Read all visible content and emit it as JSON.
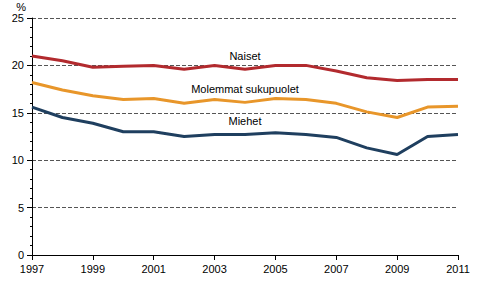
{
  "chart_data": {
    "type": "line",
    "ylabel": "%",
    "x": [
      1997,
      1998,
      1999,
      2000,
      2001,
      2002,
      2003,
      2004,
      2005,
      2006,
      2007,
      2008,
      2009,
      2010,
      2011
    ],
    "series": [
      {
        "name": "Naiset",
        "color": "#b22a2e",
        "values": [
          21.0,
          20.5,
          19.8,
          19.9,
          20.0,
          19.6,
          20.0,
          19.6,
          20.0,
          20.0,
          19.4,
          18.7,
          18.4,
          18.5,
          18.5
        ]
      },
      {
        "name": "Molemmat sukupuolet",
        "color": "#e8962a",
        "values": [
          18.2,
          17.4,
          16.8,
          16.4,
          16.5,
          16.0,
          16.4,
          16.1,
          16.5,
          16.4,
          16.0,
          15.1,
          14.5,
          15.6,
          15.7
        ]
      },
      {
        "name": "Miehet",
        "color": "#1f3f5f",
        "values": [
          15.6,
          14.5,
          13.9,
          13.0,
          13.0,
          12.5,
          12.7,
          12.7,
          12.9,
          12.7,
          12.4,
          11.3,
          10.6,
          12.5,
          12.7
        ]
      }
    ],
    "xlim": [
      1997,
      2011
    ],
    "xticks": [
      1997,
      1999,
      2001,
      2003,
      2005,
      2007,
      2009,
      2011
    ],
    "ylim": [
      0,
      25
    ],
    "yticks": [
      0,
      5,
      10,
      15,
      20,
      25
    ],
    "grid": true,
    "line_style": "solid"
  }
}
